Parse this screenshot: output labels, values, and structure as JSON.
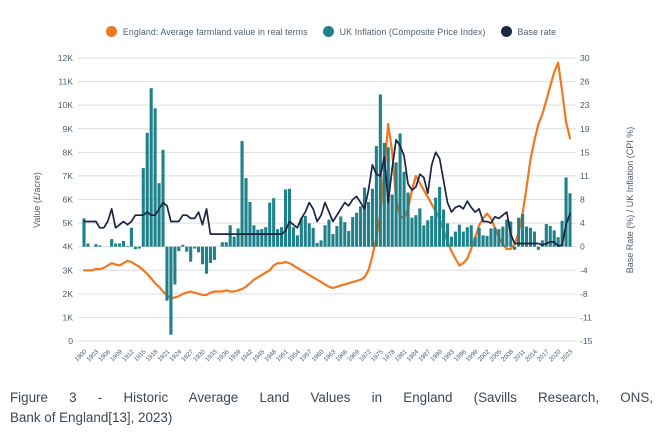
{
  "colors": {
    "farmland_orange": "#F0781E",
    "inflation_teal": "#1F828A",
    "base_rate_navy": "#1C2344",
    "grid": "#DADEE2",
    "tick_text": "#4C5C6E",
    "axis_title_text": "#4C5C6E",
    "caption_text": "#3D4754"
  },
  "legend": {
    "items": [
      {
        "label": "England: Average farmland value in real terms",
        "color": "#F0781E"
      },
      {
        "label": "UK Inflation (Composite Price Index)",
        "color": "#1F828A"
      },
      {
        "label": "Base rate",
        "color": "#1C2344"
      }
    ]
  },
  "caption": {
    "line1": "Figure 3 - Historic Average Land Values in England (Savills Research, ONS,",
    "line2": "Bank of England[13], 2023)"
  },
  "chart_data": {
    "type": "combo-bar-line",
    "x_tick_step": 3,
    "grid": "horizontal",
    "legend_position": "top",
    "left_axis": {
      "label": "Value (£/acre)",
      "range": [
        0,
        12000
      ],
      "ticks_top_down": [
        "12K",
        "11K",
        "10K",
        "9K",
        "8K",
        "7K",
        "6K",
        "5K",
        "4K",
        "3K",
        "2K",
        "1K",
        "0"
      ]
    },
    "right_axis": {
      "label": "Base Rate (%) / UK Inflation (CPI %)",
      "range": [
        -15,
        30
      ],
      "ticks_top_down": [
        "30",
        "26",
        "23",
        "19",
        "15",
        "11",
        "8",
        "4",
        "0",
        "-4",
        "-8",
        "-11",
        "-15"
      ]
    },
    "x": [
      1900,
      1901,
      1902,
      1903,
      1904,
      1905,
      1906,
      1907,
      1908,
      1909,
      1910,
      1911,
      1912,
      1913,
      1914,
      1915,
      1916,
      1917,
      1918,
      1919,
      1920,
      1921,
      1922,
      1923,
      1924,
      1925,
      1926,
      1927,
      1928,
      1929,
      1930,
      1931,
      1932,
      1933,
      1934,
      1935,
      1936,
      1937,
      1938,
      1939,
      1940,
      1941,
      1942,
      1943,
      1944,
      1945,
      1946,
      1947,
      1948,
      1949,
      1950,
      1951,
      1952,
      1953,
      1954,
      1955,
      1956,
      1957,
      1958,
      1959,
      1960,
      1961,
      1962,
      1963,
      1964,
      1965,
      1966,
      1967,
      1968,
      1969,
      1970,
      1971,
      1972,
      1973,
      1974,
      1975,
      1976,
      1977,
      1978,
      1979,
      1980,
      1981,
      1982,
      1983,
      1984,
      1985,
      1986,
      1987,
      1988,
      1989,
      1990,
      1991,
      1992,
      1993,
      1994,
      1995,
      1996,
      1997,
      1998,
      1999,
      2000,
      2001,
      2002,
      2003,
      2004,
      2005,
      2006,
      2007,
      2008,
      2009,
      2010,
      2011,
      2012,
      2013,
      2014,
      2015,
      2016,
      2017,
      2018,
      2019,
      2020,
      2021,
      2022,
      2023
    ],
    "series": [
      {
        "name": "England: Average farmland value in real terms",
        "type": "line",
        "axis": "left",
        "color": "#F0781E",
        "stroke_width": 2.2,
        "values": [
          3000,
          3000,
          3000,
          3050,
          3050,
          3100,
          3200,
          3300,
          3250,
          3200,
          3300,
          3400,
          3350,
          3250,
          3150,
          3000,
          2850,
          2650,
          2450,
          2300,
          2100,
          1950,
          1800,
          1850,
          1900,
          2000,
          2050,
          2100,
          2050,
          2000,
          1950,
          1950,
          2050,
          2100,
          2100,
          2100,
          2150,
          2100,
          2100,
          2150,
          2200,
          2300,
          2450,
          2600,
          2700,
          2800,
          2900,
          3000,
          3200,
          3300,
          3300,
          3350,
          3300,
          3200,
          3100,
          3000,
          2900,
          2800,
          2700,
          2600,
          2500,
          2400,
          2300,
          2250,
          2300,
          2350,
          2400,
          2450,
          2500,
          2550,
          2600,
          2700,
          3000,
          3600,
          4400,
          5400,
          7200,
          9200,
          8000,
          6000,
          5300,
          5200,
          5600,
          6400,
          7000,
          6700,
          6400,
          6100,
          5800,
          5500,
          5200,
          4700,
          4200,
          3800,
          3500,
          3200,
          3300,
          3500,
          3900,
          4400,
          4900,
          5200,
          5400,
          5200,
          4800,
          4400,
          4100,
          3900,
          3900,
          4100,
          4600,
          5400,
          6500,
          7700,
          8500,
          9200,
          9600,
          10200,
          10800,
          11400,
          11800,
          10600,
          9300,
          8600
        ]
      },
      {
        "name": "UK Inflation (Composite Price Index)",
        "type": "bar",
        "axis": "right",
        "color": "#1F828A",
        "values": [
          4.5,
          0.5,
          0,
          0.4,
          0.2,
          0,
          0,
          1.2,
          0.5,
          0.5,
          0.9,
          0.1,
          3,
          -0.4,
          -0.3,
          12.5,
          18.1,
          25.2,
          22,
          10.1,
          15.4,
          -8.6,
          -14,
          -6,
          -0.7,
          0.3,
          -0.8,
          -2.4,
          -0.3,
          -0.9,
          -2.8,
          -4.3,
          -2.6,
          -2.1,
          0,
          0.7,
          0.7,
          3.4,
          1.6,
          2.9,
          16.8,
          10.9,
          7.1,
          3.4,
          2.7,
          2.8,
          3.1,
          7,
          7.7,
          2.8,
          3.1,
          9.1,
          9.2,
          3.1,
          1.8,
          4.5,
          4.9,
          3.7,
          3,
          0.6,
          1,
          3.4,
          4.3,
          2,
          3.3,
          4.8,
          3.9,
          2.5,
          4.7,
          5.4,
          6.4,
          9.4,
          7.1,
          9.2,
          16,
          24.2,
          16.5,
          15.8,
          8.3,
          13.4,
          18,
          11.9,
          8.6,
          4.6,
          5,
          6.1,
          3.4,
          4.2,
          4.9,
          7.8,
          9.5,
          5.9,
          3.7,
          1.6,
          2.4,
          3.5,
          2.4,
          3.1,
          3.4,
          1.5,
          3,
          1.8,
          1.7,
          2.9,
          3,
          2.8,
          3.2,
          4.3,
          4,
          -0.5,
          4.6,
          5.2,
          3.2,
          3,
          2.4,
          -0.5,
          1,
          3.6,
          3.3,
          2.6,
          1.5,
          4.1,
          11,
          8.5
        ]
      },
      {
        "name": "Base rate",
        "type": "line",
        "axis": "right",
        "color": "#1C2344",
        "stroke_width": 1.7,
        "values": [
          4,
          4,
          4,
          4,
          3,
          3,
          4,
          6,
          3,
          3.5,
          4,
          3.5,
          4,
          5,
          5,
          5,
          5.5,
          5,
          5,
          6,
          7,
          6.5,
          4,
          4,
          4,
          5,
          5,
          4.5,
          4.5,
          5.5,
          3.5,
          6,
          2,
          2,
          2,
          2,
          2,
          2,
          2,
          2,
          2,
          2,
          2,
          2,
          2,
          2,
          2,
          2,
          2,
          2,
          2,
          2.5,
          4,
          3.5,
          3,
          4.5,
          5.5,
          7,
          6,
          4,
          5,
          7,
          5.5,
          4,
          5,
          6,
          7,
          6.5,
          7.5,
          8,
          7,
          6,
          9,
          13,
          11.5,
          11.25,
          14.25,
          7,
          12.5,
          17,
          16,
          14.5,
          10,
          9,
          9.5,
          11.5,
          11,
          8.5,
          13,
          15,
          14,
          10.5,
          7,
          5.5,
          6.25,
          6.5,
          6,
          7.25,
          6.25,
          5.5,
          6,
          4,
          4,
          3.75,
          4.75,
          4.5,
          5,
          5.5,
          2,
          0.5,
          0.5,
          0.5,
          0.5,
          0.5,
          0.5,
          0.5,
          0.25,
          0.5,
          0.75,
          0.75,
          0.1,
          0.25,
          3.5,
          5.25
        ]
      }
    ]
  }
}
